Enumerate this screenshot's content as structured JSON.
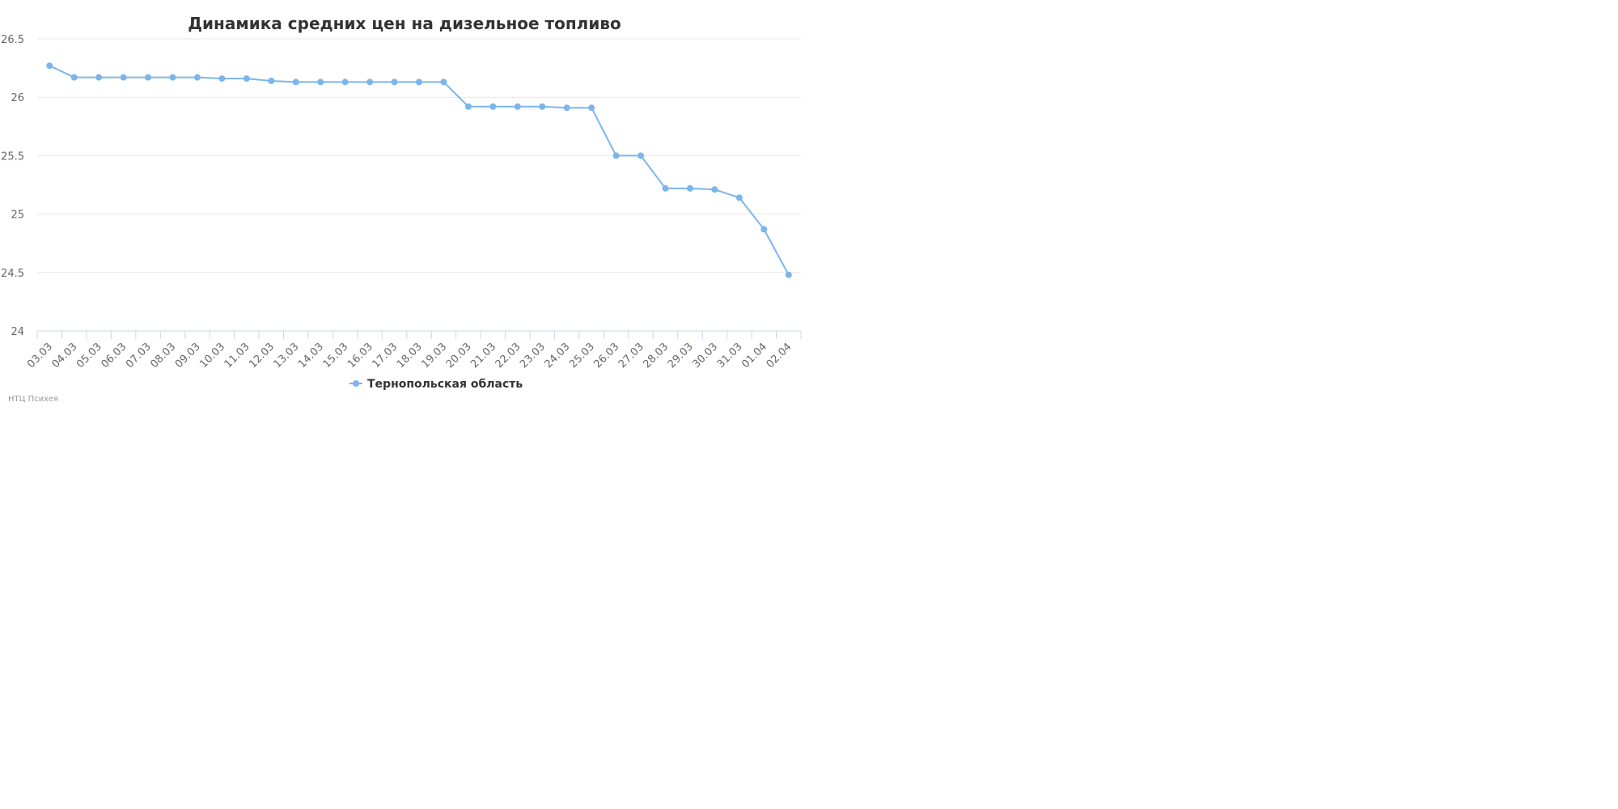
{
  "chart_data": {
    "type": "line",
    "title": "Динамика средних цен на дизельное топливо",
    "xlabel": "",
    "ylabel": "",
    "categories": [
      "03.03",
      "04.03",
      "05.03",
      "06.03",
      "07.03",
      "08.03",
      "09.03",
      "10.03",
      "11.03",
      "12.03",
      "13.03",
      "14.03",
      "15.03",
      "16.03",
      "17.03",
      "18.03",
      "19.03",
      "20.03",
      "21.03",
      "22.03",
      "23.03",
      "24.03",
      "25.03",
      "26.03",
      "27.03",
      "28.03",
      "29.03",
      "30.03",
      "31.03",
      "01.04",
      "02.04"
    ],
    "series": [
      {
        "name": "Тернопольская область",
        "color": "#7cb5ec",
        "values": [
          26.27,
          26.17,
          26.17,
          26.17,
          26.17,
          26.17,
          26.17,
          26.16,
          26.16,
          26.14,
          26.13,
          26.13,
          26.13,
          26.13,
          26.13,
          26.13,
          26.13,
          25.92,
          25.92,
          25.92,
          25.92,
          25.91,
          25.91,
          25.5,
          25.5,
          25.22,
          25.22,
          25.21,
          25.14,
          24.87,
          24.48
        ]
      }
    ],
    "ylim": [
      24,
      26.5
    ],
    "yticks": [
      "24",
      "24.5",
      "25",
      "25.5",
      "26",
      "26.5"
    ],
    "grid": true,
    "legend_position": "bottom-center"
  },
  "credit": "НТЦ Психея"
}
